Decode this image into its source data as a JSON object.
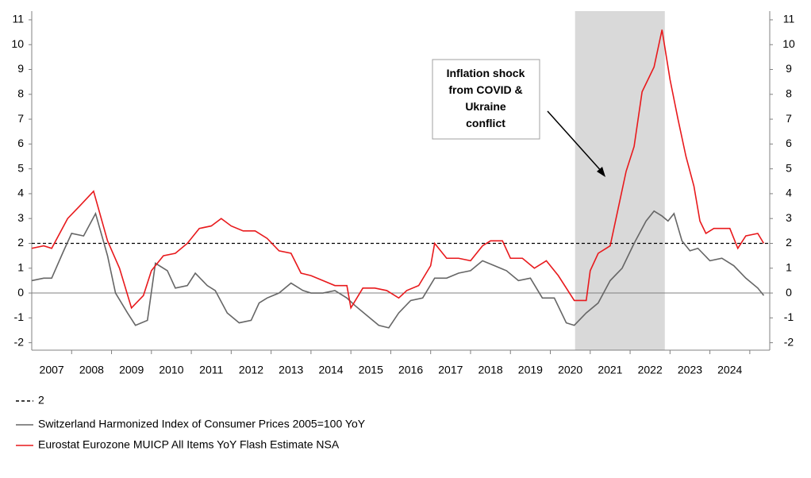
{
  "chart_data": {
    "type": "line",
    "annotation": "Inflation shock\nfrom COVID &\nUkraine\nconflict",
    "shaded_range": [
      2020.62,
      2022.87
    ],
    "reference_line": {
      "name": "2",
      "value": 2,
      "color": "#000000"
    },
    "xlim": [
      2007,
      2025.5
    ],
    "xticks": [
      {
        "value": 2007.5,
        "label": "2007"
      },
      {
        "value": 2008.5,
        "label": "2008"
      },
      {
        "value": 2009.5,
        "label": "2009"
      },
      {
        "value": 2010.5,
        "label": "2010"
      },
      {
        "value": 2011.5,
        "label": "2011"
      },
      {
        "value": 2012.5,
        "label": "2012"
      },
      {
        "value": 2013.5,
        "label": "2013"
      },
      {
        "value": 2014.5,
        "label": "2014"
      },
      {
        "value": 2015.5,
        "label": "2015"
      },
      {
        "value": 2016.5,
        "label": "2016"
      },
      {
        "value": 2017.5,
        "label": "2017"
      },
      {
        "value": 2018.5,
        "label": "2018"
      },
      {
        "value": 2019.5,
        "label": "2019"
      },
      {
        "value": 2020.5,
        "label": "2020"
      },
      {
        "value": 2021.5,
        "label": "2021"
      },
      {
        "value": 2022.5,
        "label": "2022"
      },
      {
        "value": 2023.5,
        "label": "2023"
      },
      {
        "value": 2024.5,
        "label": "2024"
      }
    ],
    "ylim": [
      -2.3,
      11.35
    ],
    "yticks": [
      -2,
      -1,
      0,
      1,
      2,
      3,
      4,
      5,
      6,
      7,
      8,
      9,
      10,
      11
    ],
    "y2lim": [
      -2.3,
      11.35
    ],
    "y2ticks": [
      -2,
      -1,
      0,
      1,
      2,
      3,
      4,
      5,
      6,
      7,
      8,
      9,
      10,
      11
    ],
    "series": [
      {
        "name": "Switzerland Harmonized Index of Consumer Prices 2005=100 YoY",
        "color": "#666666",
        "x": [
          2007.0,
          2007.3,
          2007.5,
          2007.8,
          2008.0,
          2008.3,
          2008.6,
          2008.9,
          2009.1,
          2009.4,
          2009.6,
          2009.9,
          2010.1,
          2010.4,
          2010.6,
          2010.9,
          2011.1,
          2011.4,
          2011.6,
          2011.9,
          2012.2,
          2012.5,
          2012.7,
          2012.9,
          2013.2,
          2013.5,
          2013.8,
          2014.0,
          2014.3,
          2014.6,
          2014.9,
          2015.1,
          2015.4,
          2015.7,
          2015.95,
          2016.2,
          2016.5,
          2016.8,
          2017.1,
          2017.4,
          2017.7,
          2018.0,
          2018.3,
          2018.6,
          2018.9,
          2019.2,
          2019.5,
          2019.8,
          2020.1,
          2020.4,
          2020.6,
          2020.9,
          2021.2,
          2021.5,
          2021.8,
          2022.1,
          2022.4,
          2022.6,
          2022.8,
          2022.95,
          2023.1,
          2023.3,
          2023.5,
          2023.7,
          2024.0,
          2024.3,
          2024.6,
          2024.9,
          2025.2,
          2025.35
        ],
        "values": [
          0.5,
          0.6,
          0.6,
          1.7,
          2.4,
          2.3,
          3.2,
          1.5,
          0.0,
          -0.8,
          -1.3,
          -1.1,
          1.2,
          0.9,
          0.2,
          0.3,
          0.8,
          0.3,
          0.1,
          -0.8,
          -1.2,
          -1.1,
          -0.4,
          -0.2,
          0.0,
          0.4,
          0.1,
          0.0,
          0.0,
          0.1,
          -0.2,
          -0.5,
          -0.9,
          -1.3,
          -1.4,
          -0.8,
          -0.3,
          -0.2,
          0.6,
          0.6,
          0.8,
          0.9,
          1.3,
          1.1,
          0.9,
          0.5,
          0.6,
          -0.2,
          -0.2,
          -1.2,
          -1.3,
          -0.8,
          -0.4,
          0.5,
          1.0,
          2.0,
          2.9,
          3.3,
          3.1,
          2.9,
          3.2,
          2.1,
          1.7,
          1.8,
          1.3,
          1.4,
          1.1,
          0.6,
          0.2,
          -0.1
        ]
      },
      {
        "name": "Eurostat Eurozone MUICP All Items YoY Flash Estimate NSA",
        "color": "#e8191c",
        "x": [
          2007.0,
          2007.3,
          2007.5,
          2007.9,
          2008.2,
          2008.55,
          2008.9,
          2009.2,
          2009.5,
          2009.8,
          2010.0,
          2010.3,
          2010.6,
          2010.9,
          2011.2,
          2011.5,
          2011.75,
          2012.0,
          2012.3,
          2012.6,
          2012.9,
          2013.2,
          2013.5,
          2013.75,
          2014.0,
          2014.3,
          2014.6,
          2014.9,
          2015.0,
          2015.3,
          2015.6,
          2015.9,
          2016.2,
          2016.4,
          2016.7,
          2017.0,
          2017.1,
          2017.4,
          2017.7,
          2018.0,
          2018.3,
          2018.5,
          2018.8,
          2019.0,
          2019.3,
          2019.6,
          2019.9,
          2020.2,
          2020.6,
          2020.9,
          2021.0,
          2021.2,
          2021.5,
          2021.7,
          2021.9,
          2022.1,
          2022.3,
          2022.6,
          2022.8,
          2023.0,
          2023.2,
          2023.4,
          2023.6,
          2023.75,
          2023.9,
          2024.1,
          2024.3,
          2024.5,
          2024.7,
          2024.9,
          2025.2,
          2025.35
        ],
        "values": [
          1.8,
          1.9,
          1.8,
          3.0,
          3.5,
          4.1,
          2.1,
          1.0,
          -0.6,
          -0.1,
          0.9,
          1.5,
          1.6,
          2.0,
          2.6,
          2.7,
          3.0,
          2.7,
          2.5,
          2.5,
          2.2,
          1.7,
          1.6,
          0.8,
          0.7,
          0.5,
          0.3,
          0.3,
          -0.6,
          0.2,
          0.2,
          0.1,
          -0.2,
          0.1,
          0.3,
          1.1,
          2.0,
          1.4,
          1.4,
          1.3,
          1.9,
          2.1,
          2.1,
          1.4,
          1.4,
          1.0,
          1.3,
          0.7,
          -0.3,
          -0.3,
          0.9,
          1.6,
          1.9,
          3.4,
          4.9,
          5.9,
          8.1,
          9.1,
          10.6,
          8.6,
          7.0,
          5.5,
          4.3,
          2.9,
          2.4,
          2.6,
          2.6,
          2.6,
          1.8,
          2.3,
          2.4,
          2.0
        ]
      }
    ]
  }
}
